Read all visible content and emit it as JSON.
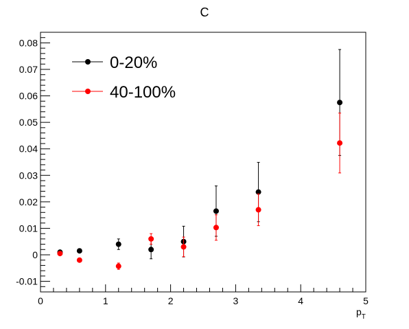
{
  "chart_data": {
    "type": "scatter",
    "title": "C",
    "xlabel": "p",
    "xlabel_sub": "T",
    "ylabel": "",
    "xlim": [
      0,
      5
    ],
    "ylim": [
      -0.014,
      0.084
    ],
    "x_ticks": [
      0,
      1,
      2,
      3,
      4,
      5
    ],
    "x_tick_labels": [
      "0",
      "1",
      "2",
      "3",
      "4",
      "5"
    ],
    "y_ticks": [
      -0.01,
      0,
      0.01,
      0.02,
      0.03,
      0.04,
      0.05,
      0.06,
      0.07,
      0.08
    ],
    "y_tick_labels": [
      "-0.01",
      "0",
      "0.01",
      "0.02",
      "0.03",
      "0.04",
      "0.05",
      "0.06",
      "0.07",
      "0.08"
    ],
    "grid": false,
    "legend_position": "top-left",
    "series": [
      {
        "name": "0-20%",
        "color": "#000000",
        "points": [
          {
            "x": 0.3,
            "y": 0.001,
            "yerr_low": 0.0005,
            "yerr_high": 0.0005
          },
          {
            "x": 0.6,
            "y": 0.0015,
            "yerr_low": 0.0005,
            "yerr_high": 0.0005
          },
          {
            "x": 1.2,
            "y": 0.004,
            "yerr_low": 0.002,
            "yerr_high": 0.002
          },
          {
            "x": 1.7,
            "y": 0.002,
            "yerr_low": 0.0035,
            "yerr_high": 0.0035
          },
          {
            "x": 2.2,
            "y": 0.005,
            "yerr_low": 0.0058,
            "yerr_high": 0.0058
          },
          {
            "x": 2.7,
            "y": 0.0165,
            "yerr_low": 0.0095,
            "yerr_high": 0.0095
          },
          {
            "x": 3.35,
            "y": 0.0237,
            "yerr_low": 0.0112,
            "yerr_high": 0.0112
          },
          {
            "x": 4.6,
            "y": 0.0575,
            "yerr_low": 0.02,
            "yerr_high": 0.02
          }
        ]
      },
      {
        "name": "40-100%",
        "color": "#ff0000",
        "points": [
          {
            "x": 0.3,
            "y": 0.0005,
            "yerr_low": 0.0005,
            "yerr_high": 0.0005
          },
          {
            "x": 0.6,
            "y": -0.002,
            "yerr_low": 0.0004,
            "yerr_high": 0.0004
          },
          {
            "x": 1.2,
            "y": -0.0043,
            "yerr_low": 0.0012,
            "yerr_high": 0.0012
          },
          {
            "x": 1.7,
            "y": 0.006,
            "yerr_low": 0.002,
            "yerr_high": 0.002
          },
          {
            "x": 2.2,
            "y": 0.003,
            "yerr_low": 0.0037,
            "yerr_high": 0.0037
          },
          {
            "x": 2.7,
            "y": 0.0103,
            "yerr_low": 0.0048,
            "yerr_high": 0.0048
          },
          {
            "x": 3.35,
            "y": 0.017,
            "yerr_low": 0.006,
            "yerr_high": 0.006
          },
          {
            "x": 4.6,
            "y": 0.0422,
            "yerr_low": 0.0113,
            "yerr_high": 0.0113
          }
        ]
      }
    ]
  }
}
